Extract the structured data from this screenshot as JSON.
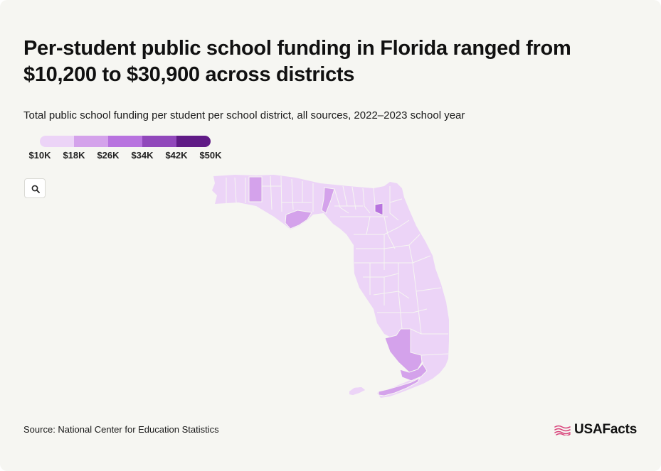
{
  "header": {
    "title": "Per-student public school funding in Florida ranged from $10,200 to $30,900 across districts",
    "subtitle": "Total public school funding per student per school district, all sources, 2022–2023 school year"
  },
  "legend": {
    "ticks": [
      "$10K",
      "$18K",
      "$26K",
      "$34K",
      "$42K",
      "$50K"
    ],
    "colors": [
      "#ecd4f7",
      "#d4a2eb",
      "#b873df",
      "#9148bb",
      "#601b86"
    ]
  },
  "map": {
    "region": "Florida",
    "zoom_icon": "search-icon",
    "base_color": "#ecd4f7",
    "border_color": "#f6f6f2"
  },
  "footer": {
    "source": "Source: National Center for Education Statistics",
    "brand": "USAFacts",
    "brand_icon": "usafacts-flag-logo",
    "brand_color": "#d8427a"
  }
}
